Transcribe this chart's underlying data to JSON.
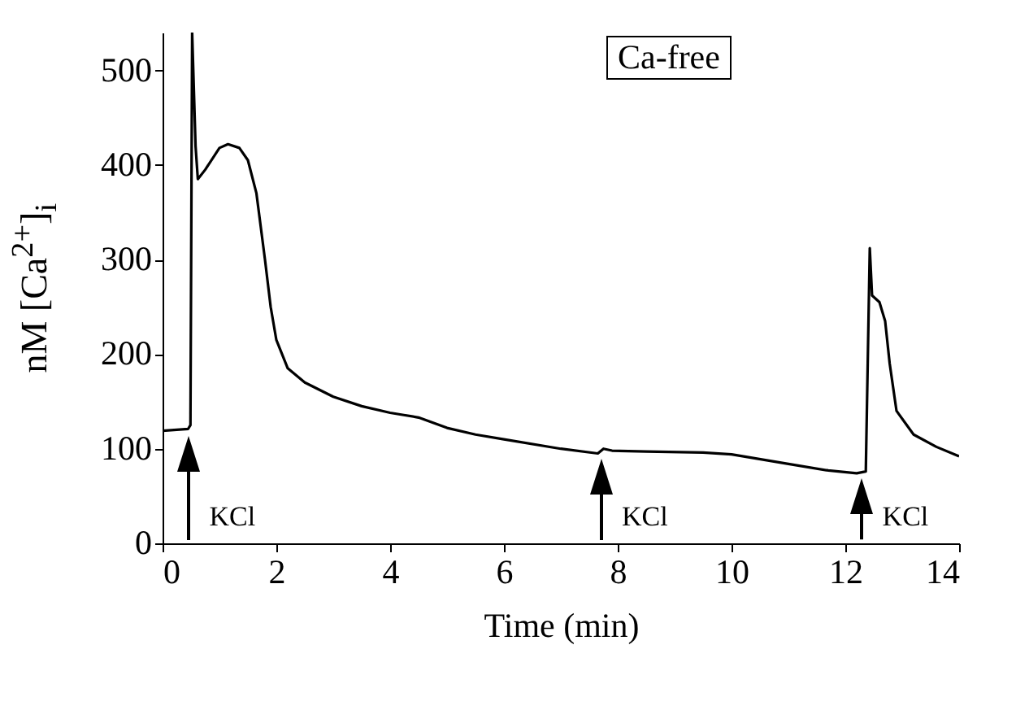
{
  "chart_data": {
    "type": "line",
    "xlabel": "Time (min)",
    "ylabel": "nM [Ca$^{2+}$]$_{i}$",
    "xlim": [
      0,
      14
    ],
    "ylim": [
      0,
      540
    ],
    "xticks": [
      0,
      2,
      4,
      6,
      8,
      10,
      12,
      14
    ],
    "yticks": [
      0,
      100,
      200,
      300,
      400,
      500
    ],
    "grid": false,
    "marker": "none",
    "line_style": "solid",
    "series": [
      {
        "color": "#000000",
        "x": [
          0,
          0.45,
          0.49,
          0.52,
          0.58,
          0.62,
          0.75,
          1.0,
          1.15,
          1.35,
          1.5,
          1.65,
          1.8,
          1.9,
          2.0,
          2.2,
          2.5,
          3,
          3.5,
          4,
          4.5,
          5,
          5.5,
          6,
          7,
          7.65,
          7.75,
          7.9,
          8.5,
          9.5,
          10,
          11,
          11.7,
          12.2,
          12.36,
          12.43,
          12.47,
          12.6,
          12.7,
          12.78,
          12.9,
          13.2,
          13.6,
          14
        ],
        "values": [
          119,
          121,
          125,
          540,
          420,
          385,
          395,
          418,
          422,
          418,
          405,
          370,
          300,
          250,
          215,
          185,
          170,
          155,
          145,
          138,
          133,
          122,
          115,
          110,
          100,
          95,
          100,
          98,
          97,
          96,
          94,
          84,
          77,
          74,
          76,
          312,
          262,
          255,
          235,
          190,
          140,
          115,
          102,
          92
        ]
      }
    ],
    "annotations": [
      "Ca-free",
      {
        "text": "KCl",
        "x": 0.45,
        "y": 121
      },
      {
        "text": "KCl",
        "x": 7.7,
        "y": 97
      },
      {
        "text": "KCl",
        "x": 12.28,
        "y": 75
      }
    ]
  }
}
